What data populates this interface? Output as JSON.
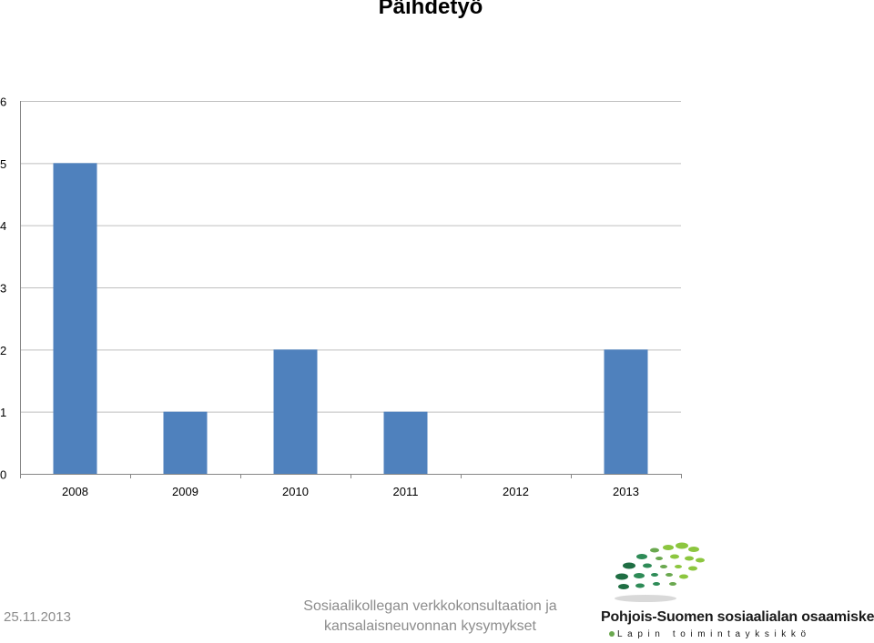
{
  "slide": {
    "title": "Päihdetyö"
  },
  "chart_data": {
    "type": "bar",
    "title": "",
    "xlabel": "",
    "ylabel": "",
    "categories": [
      "2008",
      "2009",
      "2010",
      "2011",
      "2012",
      "2013"
    ],
    "values": [
      5,
      1,
      2,
      1,
      0,
      2
    ],
    "ylim": [
      0,
      6
    ],
    "yticks": [
      "0",
      "1",
      "2",
      "3",
      "4",
      "5",
      "6"
    ],
    "grid": true,
    "legend": "none",
    "bar_color": "#4f81bd"
  },
  "footer": {
    "date": "25.11.2013",
    "center_line1": "Sosiaalikollegan verkkokonsultaation ja",
    "center_line2": "kansalaisneuvonnan kysymykset"
  },
  "logo": {
    "name": "Pohjois-Suomen sosiaalialan osaamiskeskus",
    "subtitle": "Lapin toimintayksikkö",
    "colors": [
      "#6aa84f",
      "#8cc63f",
      "#2e8b57",
      "#1f6e43"
    ]
  }
}
